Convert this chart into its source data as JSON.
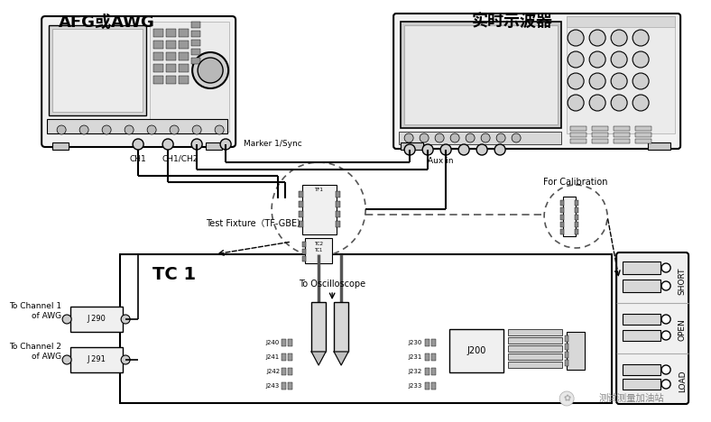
{
  "bg_color": "#ffffff",
  "title_afg": "AFG或AWG",
  "title_osc": "实时示波器",
  "label_ch1": "CH1",
  "label_ch1ch2": "CH1/CH2",
  "label_marker": "Marker 1/Sync",
  "label_auxin": "Aux in",
  "label_fixture": "Test Fixture（TF-GBE）",
  "label_calibration": "For Calibration",
  "label_oscilloscope": "To Oscilloscope",
  "label_tc1": "TC 1",
  "label_ch1_awg": "To Channel 1\nof AWG",
  "label_ch2_awg": "To Channel 2\nof AWG",
  "label_j290": "J 290",
  "label_j291": "J 291",
  "label_j200": "J200",
  "label_short": "SHORT",
  "label_open": "OPEN",
  "label_load": "LOAD",
  "watermark": "测试测量加油站"
}
